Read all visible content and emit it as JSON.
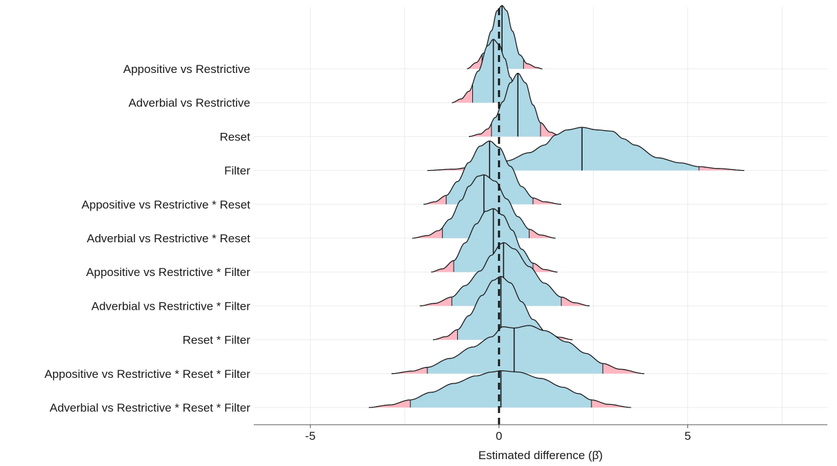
{
  "chart_data": {
    "type": "density-ridges",
    "xlabel": "Estimated difference (β̂)",
    "xlim": [
      -6.5,
      8.7
    ],
    "xticks": [
      -5,
      0,
      5
    ],
    "xtick_labels": [
      "-5",
      "0",
      "5"
    ],
    "reference_line_x": 0,
    "grid": true,
    "colors": {
      "interval_fill": "#add8e6",
      "tail_fill": "#ffb6c1",
      "outline": "#1a1a1a"
    },
    "series": [
      {
        "name": "Appositive vs Restrictive",
        "median": 0.08,
        "lower": -0.45,
        "upper": 0.65,
        "min": -0.85,
        "max": 1.15,
        "density": [
          [
            -0.85,
            0.0
          ],
          [
            -0.6,
            0.1
          ],
          [
            -0.4,
            0.25
          ],
          [
            -0.2,
            0.6
          ],
          [
            -0.05,
            0.92
          ],
          [
            0.08,
            1.0
          ],
          [
            0.2,
            0.92
          ],
          [
            0.35,
            0.6
          ],
          [
            0.55,
            0.22
          ],
          [
            0.75,
            0.08
          ],
          [
            1.0,
            0.02
          ],
          [
            1.15,
            0.0
          ]
        ]
      },
      {
        "name": "Adverbial vs Restrictive",
        "median": -0.15,
        "lower": -0.7,
        "upper": 0.45,
        "min": -1.25,
        "max": 0.85,
        "density": [
          [
            -1.25,
            0.0
          ],
          [
            -1.0,
            0.06
          ],
          [
            -0.8,
            0.18
          ],
          [
            -0.55,
            0.5
          ],
          [
            -0.3,
            0.9
          ],
          [
            -0.15,
            1.0
          ],
          [
            0.0,
            0.92
          ],
          [
            0.15,
            0.7
          ],
          [
            0.3,
            0.4
          ],
          [
            0.45,
            0.15
          ],
          [
            0.65,
            0.04
          ],
          [
            0.85,
            0.0
          ]
        ]
      },
      {
        "name": "Reset",
        "median": 0.5,
        "lower": -0.2,
        "upper": 1.1,
        "min": -0.8,
        "max": 1.65,
        "density": [
          [
            -0.8,
            0.0
          ],
          [
            -0.5,
            0.04
          ],
          [
            -0.3,
            0.12
          ],
          [
            -0.1,
            0.3
          ],
          [
            0.1,
            0.55
          ],
          [
            0.3,
            0.85
          ],
          [
            0.5,
            1.0
          ],
          [
            0.7,
            0.85
          ],
          [
            0.9,
            0.5
          ],
          [
            1.1,
            0.22
          ],
          [
            1.35,
            0.07
          ],
          [
            1.65,
            0.0
          ]
        ]
      },
      {
        "name": "Filter",
        "median": 2.2,
        "lower": -0.8,
        "upper": 5.3,
        "min": -1.9,
        "max": 6.5,
        "density": [
          [
            -1.9,
            0.0
          ],
          [
            -1.2,
            0.02
          ],
          [
            -0.5,
            0.08
          ],
          [
            0.2,
            0.15
          ],
          [
            0.8,
            0.28
          ],
          [
            1.2,
            0.4
          ],
          [
            1.5,
            0.56
          ],
          [
            1.8,
            0.64
          ],
          [
            2.2,
            0.68
          ],
          [
            2.6,
            0.64
          ],
          [
            3.0,
            0.62
          ],
          [
            3.3,
            0.5
          ],
          [
            3.6,
            0.4
          ],
          [
            4.2,
            0.2
          ],
          [
            4.8,
            0.12
          ],
          [
            5.3,
            0.06
          ],
          [
            5.8,
            0.03
          ],
          [
            6.5,
            0.0
          ]
        ]
      },
      {
        "name": "Appositive vs Restrictive * Reset",
        "median": -0.25,
        "lower": -1.4,
        "upper": 0.9,
        "min": -2.0,
        "max": 1.65,
        "density": [
          [
            -2.0,
            0.0
          ],
          [
            -1.7,
            0.04
          ],
          [
            -1.4,
            0.14
          ],
          [
            -1.1,
            0.36
          ],
          [
            -0.8,
            0.66
          ],
          [
            -0.5,
            0.92
          ],
          [
            -0.25,
            1.0
          ],
          [
            0.0,
            0.9
          ],
          [
            0.3,
            0.6
          ],
          [
            0.6,
            0.28
          ],
          [
            0.9,
            0.1
          ],
          [
            1.2,
            0.04
          ],
          [
            1.65,
            0.0
          ]
        ]
      },
      {
        "name": "Adverbial vs Restrictive * Reset",
        "median": -0.4,
        "lower": -1.5,
        "upper": 0.8,
        "min": -2.3,
        "max": 1.5,
        "density": [
          [
            -2.3,
            0.0
          ],
          [
            -1.9,
            0.04
          ],
          [
            -1.6,
            0.12
          ],
          [
            -1.3,
            0.3
          ],
          [
            -1.0,
            0.6
          ],
          [
            -0.8,
            0.82
          ],
          [
            -0.55,
            0.98
          ],
          [
            -0.4,
            1.0
          ],
          [
            -0.1,
            0.9
          ],
          [
            0.2,
            0.62
          ],
          [
            0.5,
            0.34
          ],
          [
            0.8,
            0.14
          ],
          [
            1.1,
            0.05
          ],
          [
            1.5,
            0.0
          ]
        ]
      },
      {
        "name": "Appositive vs Restrictive * Filter",
        "median": -0.15,
        "lower": -1.2,
        "upper": 0.9,
        "min": -1.8,
        "max": 1.55,
        "density": [
          [
            -1.8,
            0.0
          ],
          [
            -1.5,
            0.05
          ],
          [
            -1.2,
            0.18
          ],
          [
            -0.9,
            0.46
          ],
          [
            -0.6,
            0.76
          ],
          [
            -0.35,
            0.96
          ],
          [
            -0.15,
            1.0
          ],
          [
            0.1,
            0.9
          ],
          [
            0.35,
            0.66
          ],
          [
            0.6,
            0.36
          ],
          [
            0.9,
            0.14
          ],
          [
            1.2,
            0.04
          ],
          [
            1.55,
            0.0
          ]
        ]
      },
      {
        "name": "Adverbial vs Restrictive * Filter",
        "median": 0.12,
        "lower": -1.25,
        "upper": 1.65,
        "min": -2.1,
        "max": 2.4,
        "density": [
          [
            -2.1,
            0.0
          ],
          [
            -1.7,
            0.04
          ],
          [
            -1.25,
            0.14
          ],
          [
            -0.9,
            0.32
          ],
          [
            -0.5,
            0.55
          ],
          [
            -0.2,
            0.8
          ],
          [
            0.05,
            0.98
          ],
          [
            0.12,
            1.0
          ],
          [
            0.4,
            0.9
          ],
          [
            0.8,
            0.62
          ],
          [
            1.2,
            0.36
          ],
          [
            1.65,
            0.14
          ],
          [
            2.0,
            0.05
          ],
          [
            2.4,
            0.0
          ]
        ]
      },
      {
        "name": "Reset *  Filter",
        "median": 0.05,
        "lower": -1.1,
        "upper": 1.25,
        "min": -1.75,
        "max": 1.95,
        "density": [
          [
            -1.75,
            0.0
          ],
          [
            -1.4,
            0.05
          ],
          [
            -1.1,
            0.16
          ],
          [
            -0.8,
            0.38
          ],
          [
            -0.45,
            0.7
          ],
          [
            -0.15,
            0.94
          ],
          [
            0.05,
            1.0
          ],
          [
            0.3,
            0.9
          ],
          [
            0.6,
            0.6
          ],
          [
            0.9,
            0.32
          ],
          [
            1.25,
            0.12
          ],
          [
            1.6,
            0.04
          ],
          [
            1.95,
            0.0
          ]
        ]
      },
      {
        "name": "Appositive vs Restrictive * Reset * Filter",
        "median": 0.4,
        "lower": -1.9,
        "upper": 2.75,
        "min": -2.85,
        "max": 3.85,
        "density": [
          [
            -2.85,
            0.0
          ],
          [
            -2.3,
            0.04
          ],
          [
            -1.9,
            0.1
          ],
          [
            -1.3,
            0.24
          ],
          [
            -0.7,
            0.42
          ],
          [
            -0.2,
            0.58
          ],
          [
            0.1,
            0.74
          ],
          [
            0.4,
            0.72
          ],
          [
            0.8,
            0.76
          ],
          [
            1.2,
            0.68
          ],
          [
            1.8,
            0.5
          ],
          [
            2.3,
            0.32
          ],
          [
            2.75,
            0.16
          ],
          [
            3.2,
            0.07
          ],
          [
            3.85,
            0.0
          ]
        ]
      },
      {
        "name": "Adverbial vs Restrictive * Reset * Filter",
        "median": 0.05,
        "lower": -2.35,
        "upper": 2.45,
        "min": -3.45,
        "max": 3.5,
        "density": [
          [
            -3.45,
            0.0
          ],
          [
            -2.9,
            0.04
          ],
          [
            -2.35,
            0.12
          ],
          [
            -1.8,
            0.24
          ],
          [
            -1.2,
            0.38
          ],
          [
            -0.6,
            0.5
          ],
          [
            -0.2,
            0.56
          ],
          [
            0.05,
            0.58
          ],
          [
            0.5,
            0.56
          ],
          [
            1.1,
            0.46
          ],
          [
            1.7,
            0.32
          ],
          [
            2.1,
            0.22
          ],
          [
            2.45,
            0.12
          ],
          [
            2.9,
            0.05
          ],
          [
            3.5,
            0.0
          ]
        ]
      }
    ]
  }
}
